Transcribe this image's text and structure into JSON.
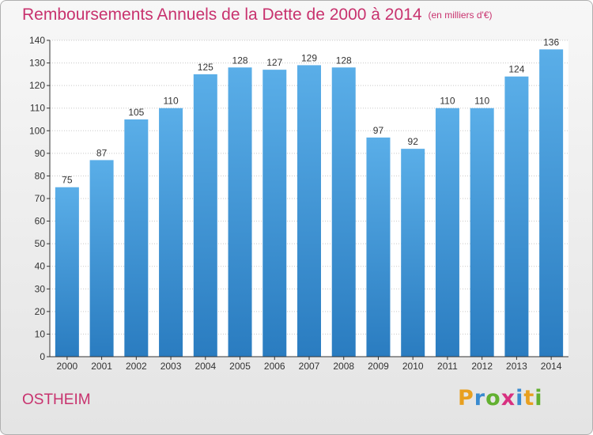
{
  "title": "Remboursements Annuels de la Dette de 2000 à 2014",
  "subtitle": "(en milliers d'€)",
  "commune": "OSTHEIM",
  "logo": {
    "letters": [
      "P",
      "r",
      "o",
      "x",
      "i",
      "t",
      "i"
    ],
    "colors": [
      "#e8a020",
      "#3a8bd0",
      "#62b030",
      "#d83080",
      "#3a8bd0",
      "#e8a020",
      "#62b030"
    ]
  },
  "colors": {
    "title": "#c8326e",
    "bar_light": "#5aaee8",
    "bar_dark": "#2a7cc0",
    "grid": "#c8c8c8",
    "axis": "#333333"
  },
  "chart_data": {
    "type": "bar",
    "categories": [
      "2000",
      "2001",
      "2002",
      "2003",
      "2004",
      "2005",
      "2006",
      "2007",
      "2008",
      "2009",
      "2010",
      "2011",
      "2012",
      "2013",
      "2014"
    ],
    "values": [
      75,
      87,
      105,
      110,
      125,
      128,
      127,
      129,
      128,
      97,
      92,
      110,
      110,
      124,
      136
    ],
    "title": "Remboursements Annuels de la Dette de 2000 à 2014",
    "subtitle": "(en milliers d'€)",
    "xlabel": "",
    "ylabel": "",
    "ylim": [
      0,
      140
    ],
    "yticks": [
      0,
      10,
      20,
      30,
      40,
      50,
      60,
      70,
      80,
      90,
      100,
      110,
      120,
      130,
      140
    ],
    "grid": true,
    "legend": "none"
  }
}
